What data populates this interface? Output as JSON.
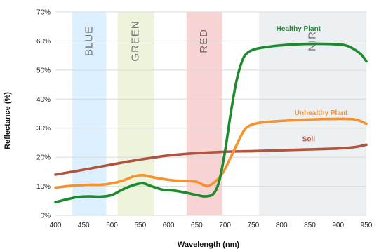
{
  "chart_data": {
    "type": "line",
    "title": "",
    "xlabel": "Wavelength (nm)",
    "ylabel": "Reflectance (%)",
    "xlim": [
      400,
      950
    ],
    "ylim": [
      0,
      70
    ],
    "x_ticks": [
      400,
      450,
      500,
      550,
      600,
      650,
      700,
      750,
      800,
      850,
      900,
      950
    ],
    "y_ticks": [
      {
        "value": 0,
        "label": "0%"
      },
      {
        "value": 10,
        "label": "10%"
      },
      {
        "value": 20,
        "label": "20%"
      },
      {
        "value": 30,
        "label": "30%"
      },
      {
        "value": 40,
        "label": "40%"
      },
      {
        "value": 50,
        "label": "50%"
      },
      {
        "value": 60,
        "label": "60%"
      },
      {
        "value": 70,
        "label": "70%"
      }
    ],
    "grid": "horizontal",
    "bands": [
      {
        "label": "BLUE",
        "start": 430,
        "end": 490,
        "color": "#dcefff"
      },
      {
        "label": "GREEN",
        "start": 510,
        "end": 575,
        "color": "#eef4dc"
      },
      {
        "label": "RED",
        "start": 632,
        "end": 695,
        "color": "#f8d3d3"
      },
      {
        "label": "NIR",
        "start": 760,
        "end": 950,
        "color": "#edf0f3"
      }
    ],
    "series": [
      {
        "name": "Healthy Plant",
        "color": "#1e8a2e",
        "label_at": [
          830,
          63.5
        ],
        "points": [
          [
            400,
            4.5
          ],
          [
            420,
            5.5
          ],
          [
            440,
            6.3
          ],
          [
            460,
            6.5
          ],
          [
            480,
            6.4
          ],
          [
            500,
            7.0
          ],
          [
            520,
            9.0
          ],
          [
            540,
            10.5
          ],
          [
            555,
            11.0
          ],
          [
            570,
            10.0
          ],
          [
            590,
            8.8
          ],
          [
            610,
            8.5
          ],
          [
            630,
            7.8
          ],
          [
            650,
            7.0
          ],
          [
            665,
            6.5
          ],
          [
            680,
            7.5
          ],
          [
            690,
            12.0
          ],
          [
            700,
            22.0
          ],
          [
            710,
            35.0
          ],
          [
            720,
            46.0
          ],
          [
            730,
            53.0
          ],
          [
            740,
            56.0
          ],
          [
            760,
            57.5
          ],
          [
            800,
            58.5
          ],
          [
            850,
            59.0
          ],
          [
            900,
            58.8
          ],
          [
            920,
            58.0
          ],
          [
            940,
            55.5
          ],
          [
            950,
            53.0
          ]
        ]
      },
      {
        "name": "Unhealthy Plant",
        "color": "#f5922d",
        "label_at": [
          870,
          34.5
        ],
        "points": [
          [
            400,
            9.5
          ],
          [
            420,
            10.0
          ],
          [
            440,
            10.3
          ],
          [
            460,
            10.5
          ],
          [
            480,
            10.5
          ],
          [
            500,
            11.0
          ],
          [
            520,
            12.0
          ],
          [
            540,
            13.5
          ],
          [
            555,
            13.8
          ],
          [
            570,
            13.2
          ],
          [
            590,
            12.5
          ],
          [
            610,
            12.0
          ],
          [
            630,
            11.8
          ],
          [
            650,
            11.5
          ],
          [
            665,
            10.2
          ],
          [
            675,
            10.5
          ],
          [
            690,
            13.0
          ],
          [
            700,
            16.0
          ],
          [
            710,
            20.0
          ],
          [
            720,
            24.0
          ],
          [
            730,
            28.0
          ],
          [
            740,
            30.5
          ],
          [
            760,
            31.8
          ],
          [
            800,
            32.5
          ],
          [
            850,
            33.0
          ],
          [
            900,
            33.2
          ],
          [
            930,
            33.0
          ],
          [
            950,
            31.5
          ]
        ]
      },
      {
        "name": "Soil",
        "color": "#b0543e",
        "label_at": [
          848,
          25.5
        ],
        "points": [
          [
            400,
            14.0
          ],
          [
            450,
            15.7
          ],
          [
            500,
            17.5
          ],
          [
            550,
            19.2
          ],
          [
            600,
            20.6
          ],
          [
            650,
            21.4
          ],
          [
            700,
            21.9
          ],
          [
            750,
            22.1
          ],
          [
            800,
            22.4
          ],
          [
            850,
            22.7
          ],
          [
            900,
            23.0
          ],
          [
            930,
            23.5
          ],
          [
            950,
            24.3
          ]
        ]
      }
    ]
  }
}
